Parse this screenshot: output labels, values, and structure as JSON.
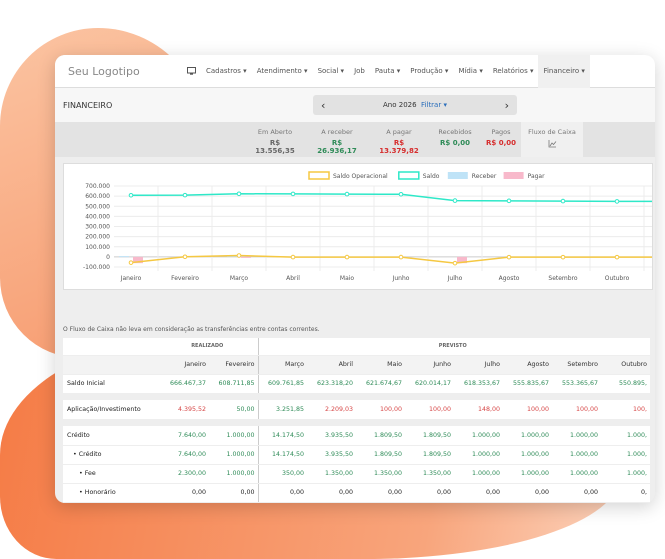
{
  "nav": {
    "logo": "Seu Logotipo",
    "items": [
      "Cadastros ▾",
      "Atendimento ▾",
      "Social ▾",
      "Job",
      "Pauta ▾",
      "Produção ▾",
      "Mídia ▾",
      "Relatórios ▾",
      "Financeiro ▾"
    ]
  },
  "header": {
    "title": "FINANCEIRO",
    "year": "Ano 2026",
    "filter": "Filtrar ▾",
    "prev": "‹",
    "next": "›"
  },
  "summary": [
    {
      "label": "Em Aberto",
      "value": "R$ 13.556,35",
      "color": "#666666"
    },
    {
      "label": "A receber",
      "value": "R$ 26.936,17",
      "color": "#2e8b57"
    },
    {
      "label": "A pagar",
      "value": "R$ 13.379,82",
      "color": "#d62c2c"
    },
    {
      "label": "Recebidos",
      "value": "R$ 0,00",
      "color": "#2e8b57"
    },
    {
      "label": "Pagos",
      "value": "R$ 0,00",
      "color": "#d62c2c"
    }
  ],
  "fluxo": {
    "label": "Fluxo de Caixa",
    "icon": "line-chart-icon"
  },
  "chart_data": {
    "type": "line",
    "categories": [
      "Janeiro",
      "Fevereiro",
      "Março",
      "Abril",
      "Maio",
      "Junho",
      "Julho",
      "Agosto",
      "Setembro",
      "Outubro"
    ],
    "ylim": [
      -100000,
      700000
    ],
    "yticks": [
      "700.000",
      "600.000",
      "500.000",
      "400.000",
      "300.000",
      "200.000",
      "100.000",
      "0",
      "-100.000"
    ],
    "legend": "top",
    "grid": true,
    "series": [
      {
        "name": "Saldo Operacional",
        "type": "line",
        "color": "#f5c842",
        "values": [
          -57000,
          1000,
          13000,
          -2000,
          -2000,
          -2000,
          -62000,
          -3000,
          -3000,
          -3000
        ]
      },
      {
        "name": "Saldo",
        "type": "line",
        "color": "#2ee8c8",
        "values": [
          608700,
          609800,
          623300,
          621700,
          620000,
          618400,
          555800,
          553400,
          550900,
          548000
        ]
      },
      {
        "name": "Receber",
        "type": "bar",
        "color": "#bfe3f7",
        "values": [
          7640,
          0,
          14175,
          0,
          0,
          0,
          0,
          0,
          0,
          0
        ]
      },
      {
        "name": "Pagar",
        "type": "bar",
        "color": "#f8b9cb",
        "values": [
          -62000,
          0,
          -10000,
          0,
          0,
          0,
          -62000,
          0,
          0,
          0
        ]
      }
    ]
  },
  "note": "O Fluxo de Caixa não leva em consideração as transferências entre contas correntes.",
  "table": {
    "realizado": "REALIZADO",
    "previsto": "PREVISTO",
    "months": [
      "Janeiro",
      "Fevereiro",
      "Março",
      "Abril",
      "Maio",
      "Junho",
      "Julho",
      "Agosto",
      "Setembro",
      "Outubro"
    ],
    "rows": [
      {
        "label": "Saldo Inicial",
        "values": [
          "666.467,37",
          "608.711,85",
          "609.761,85",
          "623.318,20",
          "621.674,67",
          "620.014,17",
          "618.353,67",
          "555.835,67",
          "553.365,67",
          "550.895,"
        ],
        "colors": "gggggggggg"
      },
      {
        "gap": true
      },
      {
        "label": "Aplicação/Investimento",
        "values": [
          "4.395,52",
          "50,00",
          "3.251,85",
          "2.209,03",
          "100,00",
          "100,00",
          "148,00",
          "100,00",
          "100,00",
          "100,"
        ],
        "colors": "rggrrrrrrr"
      },
      {
        "gap": true
      },
      {
        "label": "Crédito",
        "values": [
          "7.640,00",
          "1.000,00",
          "14.174,50",
          "3.935,50",
          "1.809,50",
          "1.809,50",
          "1.000,00",
          "1.000,00",
          "1.000,00",
          "1.000,"
        ],
        "colors": "gggggggggg"
      },
      {
        "label": "• Crédito",
        "values": [
          "7.640,00",
          "1.000,00",
          "14.174,50",
          "3.935,50",
          "1.809,50",
          "1.809,50",
          "1.000,00",
          "1.000,00",
          "1.000,00",
          "1.000,"
        ],
        "colors": "gggggggggg"
      },
      {
        "label": "• Fee",
        "values": [
          "2.300,00",
          "1.000,00",
          "350,00",
          "1.350,00",
          "1.350,00",
          "1.350,00",
          "1.000,00",
          "1.000,00",
          "1.000,00",
          "1.000,"
        ],
        "colors": "gggggggggg"
      },
      {
        "label": "• Honorário",
        "values": [
          "0,00",
          "0,00",
          "0,00",
          "0,00",
          "0,00",
          "0,00",
          "0,00",
          "0,00",
          "0,00",
          "0,"
        ],
        "colors": "kkkkkkkkkk"
      }
    ]
  }
}
